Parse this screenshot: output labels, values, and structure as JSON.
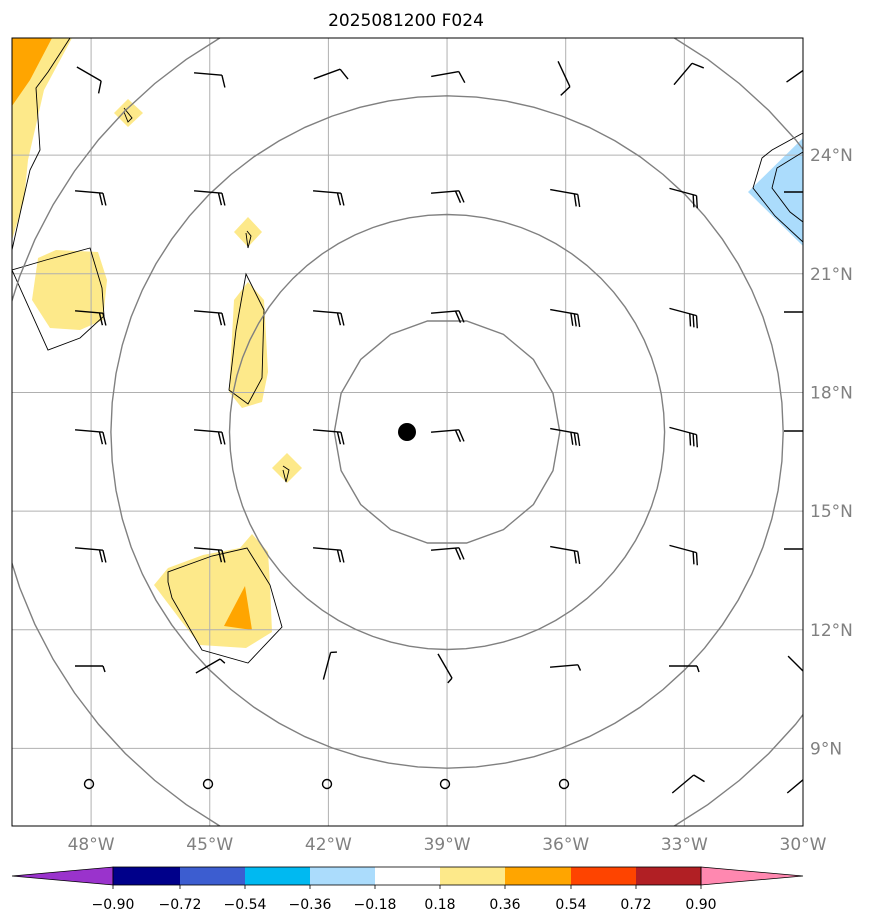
{
  "title": "2025081200 F024",
  "map": {
    "lon_range": [
      -50,
      -30
    ],
    "lat_range": [
      7,
      27
    ],
    "lon_ticks": [
      {
        "value": -48,
        "label": "48°W"
      },
      {
        "value": -45,
        "label": "45°W"
      },
      {
        "value": -42,
        "label": "42°W"
      },
      {
        "value": -39,
        "label": "39°W"
      },
      {
        "value": -36,
        "label": "36°W"
      },
      {
        "value": -33,
        "label": "33°W"
      },
      {
        "value": -30,
        "label": "30°W"
      }
    ],
    "lat_ticks": [
      {
        "value": 24,
        "label": "24°N"
      },
      {
        "value": 21,
        "label": "21°N"
      },
      {
        "value": 18,
        "label": "18°N"
      },
      {
        "value": 15,
        "label": "15°N"
      },
      {
        "value": 12,
        "label": "12°N"
      },
      {
        "value": 9,
        "label": "9°N"
      }
    ],
    "center": {
      "lon": -39,
      "lat": 17
    },
    "range_rings_deg": [
      2.85,
      5.5,
      8.5,
      11.5
    ],
    "colors": {
      "grid": "#b0b0b0",
      "ring": "#808080",
      "contour": "#000000",
      "shade_040": "#fde98a",
      "shade_055": "#ffa500",
      "shade_neg": "#abdcfc"
    }
  },
  "colorbar": {
    "tick_labels": [
      "−0.90",
      "−0.72",
      "−0.54",
      "−0.36",
      "−0.18",
      "0.18",
      "0.36",
      "0.54",
      "0.72",
      "0.90"
    ],
    "colors": [
      "#9a33cc",
      "#00008a",
      "#3c5dd0",
      "#00b9f1",
      "#abdcfc",
      "#ffffff",
      "#fde98a",
      "#ffa500",
      "#fe4400",
      "#b11f24",
      "#ff88b0"
    ]
  }
}
